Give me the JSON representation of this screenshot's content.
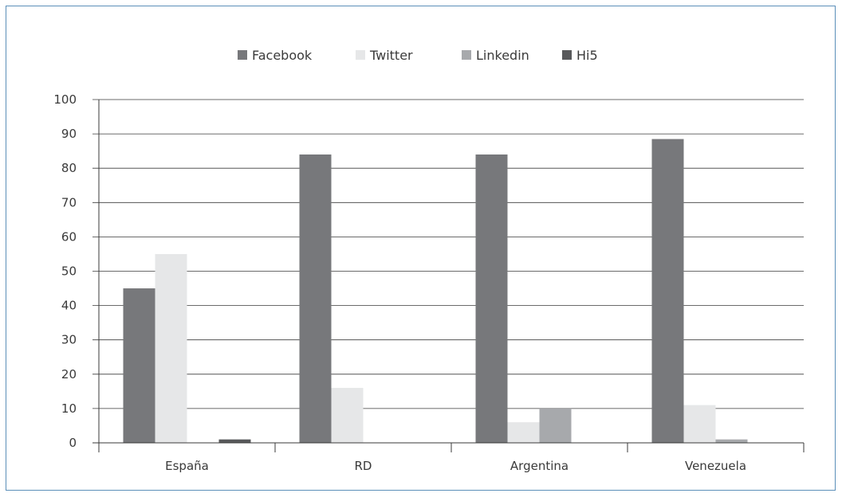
{
  "chart_data": {
    "type": "bar",
    "categories": [
      "España",
      "RD",
      "Argentina",
      "Venezuela"
    ],
    "series": [
      {
        "name": "Facebook",
        "color": "#77787b",
        "values": [
          45,
          84,
          84,
          88.5
        ]
      },
      {
        "name": "Twitter",
        "color": "#e6e7e8",
        "values": [
          55,
          16,
          6,
          11
        ]
      },
      {
        "name": "Linkedin",
        "color": "#a7a9ac",
        "values": [
          0,
          0,
          10,
          1
        ]
      },
      {
        "name": "Hi5",
        "color": "#58595b",
        "values": [
          1,
          0,
          0,
          0
        ]
      }
    ],
    "yticks": [
      "0",
      "10",
      "20",
      "30",
      "40",
      "50",
      "60",
      "70",
      "80",
      "90",
      "100"
    ],
    "ylim": [
      0,
      100
    ],
    "grid": true,
    "legend_position": "top-center"
  }
}
